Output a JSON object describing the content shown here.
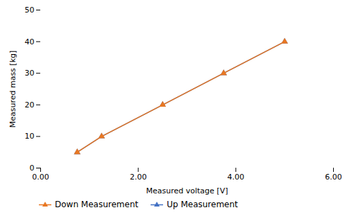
{
  "chart_data": {
    "type": "line",
    "xlabel": "Measured voltage [V]",
    "ylabel": "Measured mass [kg]",
    "x": [
      0.75,
      1.25,
      2.5,
      3.75,
      5.0
    ],
    "series": [
      {
        "name": "Down Measurement",
        "color": "#E87722",
        "marker": "triangle",
        "values": [
          5,
          10,
          20,
          30,
          40
        ]
      },
      {
        "name": "Up Measurement",
        "color": "#4472C4",
        "marker": "triangle",
        "values": [
          5,
          10,
          20,
          30,
          40
        ]
      }
    ],
    "xlim": [
      0.0,
      6.0
    ],
    "ylim": [
      0,
      50
    ],
    "xticks": [
      {
        "value": 0.0,
        "label": "0.00"
      },
      {
        "value": 2.0,
        "label": "2.00"
      },
      {
        "value": 4.0,
        "label": "4.00"
      },
      {
        "value": 6.0,
        "label": "6.00"
      }
    ],
    "yticks": [
      0,
      10,
      20,
      30,
      40,
      50
    ],
    "grid": false,
    "legend": "bottom"
  }
}
